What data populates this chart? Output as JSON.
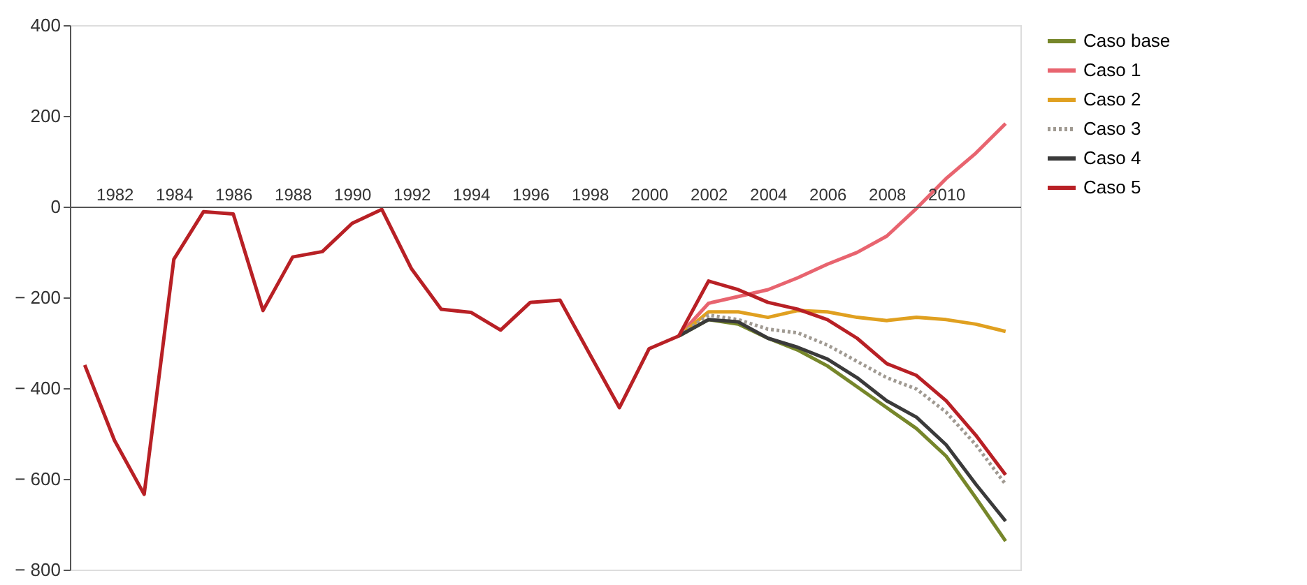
{
  "chart_data": {
    "type": "line",
    "categories": [
      null,
      "1982",
      null,
      "1984",
      null,
      "1986",
      null,
      "1988",
      null,
      "1990",
      null,
      "1992",
      null,
      "1994",
      null,
      "1996",
      null,
      "1998",
      null,
      "2000",
      null,
      "2002",
      null,
      "2004",
      null,
      "2006",
      null,
      "2008",
      null,
      "2010",
      null,
      null
    ],
    "series": [
      {
        "color": "#b82025",
        "values": [
          -349,
          -515,
          -634,
          -116,
          -11,
          -16,
          -229,
          -111,
          -99,
          -37,
          -6,
          -137,
          -226,
          -233,
          -272,
          -211,
          -206,
          -325,
          -443,
          -313,
          -285,
          null,
          null,
          null,
          null,
          null,
          null,
          null,
          null,
          null,
          null,
          null
        ]
      },
      {
        "name": "Caso base",
        "color": "#76862a",
        "values": [
          null,
          null,
          null,
          null,
          null,
          null,
          null,
          null,
          null,
          null,
          null,
          null,
          null,
          null,
          null,
          null,
          null,
          null,
          null,
          null,
          -285,
          -249,
          -259,
          -290,
          -316,
          -351,
          -397,
          -443,
          -489,
          -550,
          -642,
          -737
        ]
      },
      {
        "name": "Caso 1",
        "color": "#e8646f",
        "values": [
          null,
          null,
          null,
          null,
          null,
          null,
          null,
          null,
          null,
          null,
          null,
          null,
          null,
          null,
          null,
          null,
          null,
          null,
          null,
          null,
          -285,
          -213,
          -198,
          -183,
          -157,
          -127,
          -101,
          -65,
          -4,
          62,
          118,
          183
        ]
      },
      {
        "name": "Caso 2",
        "color": "#e0a020",
        "values": [
          null,
          null,
          null,
          null,
          null,
          null,
          null,
          null,
          null,
          null,
          null,
          null,
          null,
          null,
          null,
          null,
          null,
          null,
          null,
          null,
          -285,
          -232,
          -232,
          -244,
          -229,
          -232,
          -244,
          -251,
          -244,
          -249,
          -259,
          -275
        ]
      },
      {
        "name": "Caso 3",
        "color": "#a09a92",
        "line_style": "dotted",
        "values": [
          null,
          null,
          null,
          null,
          null,
          null,
          null,
          null,
          null,
          null,
          null,
          null,
          null,
          null,
          null,
          null,
          null,
          null,
          null,
          null,
          -285,
          -239,
          -249,
          -270,
          -278,
          -305,
          -341,
          -377,
          -402,
          -453,
          -525,
          -612
        ]
      },
      {
        "name": "Caso 4",
        "color": "#3a3a3a",
        "values": [
          null,
          null,
          null,
          null,
          null,
          null,
          null,
          null,
          null,
          null,
          null,
          null,
          null,
          null,
          null,
          null,
          null,
          null,
          null,
          null,
          -285,
          -249,
          -254,
          -290,
          -310,
          -336,
          -377,
          -428,
          -464,
          -525,
          -612,
          -693
        ]
      },
      {
        "name": "Caso 5",
        "color": "#b82025",
        "values": [
          null,
          null,
          null,
          null,
          null,
          null,
          null,
          null,
          null,
          null,
          null,
          null,
          null,
          null,
          null,
          null,
          null,
          null,
          null,
          null,
          -285,
          -164,
          -183,
          -211,
          -226,
          -249,
          -290,
          -346,
          -372,
          -428,
          -504,
          -591
        ]
      }
    ],
    "ylim": [
      -800,
      400
    ],
    "yticks": [
      {
        "value": -800,
        "label": "− 800"
      },
      {
        "value": -600,
        "label": "− 600"
      },
      {
        "value": -400,
        "label": "− 400"
      },
      {
        "value": -200,
        "label": "− 200"
      },
      0,
      200,
      400
    ],
    "grid": false,
    "legend": "right",
    "line_style": "solid",
    "marker": "none"
  }
}
